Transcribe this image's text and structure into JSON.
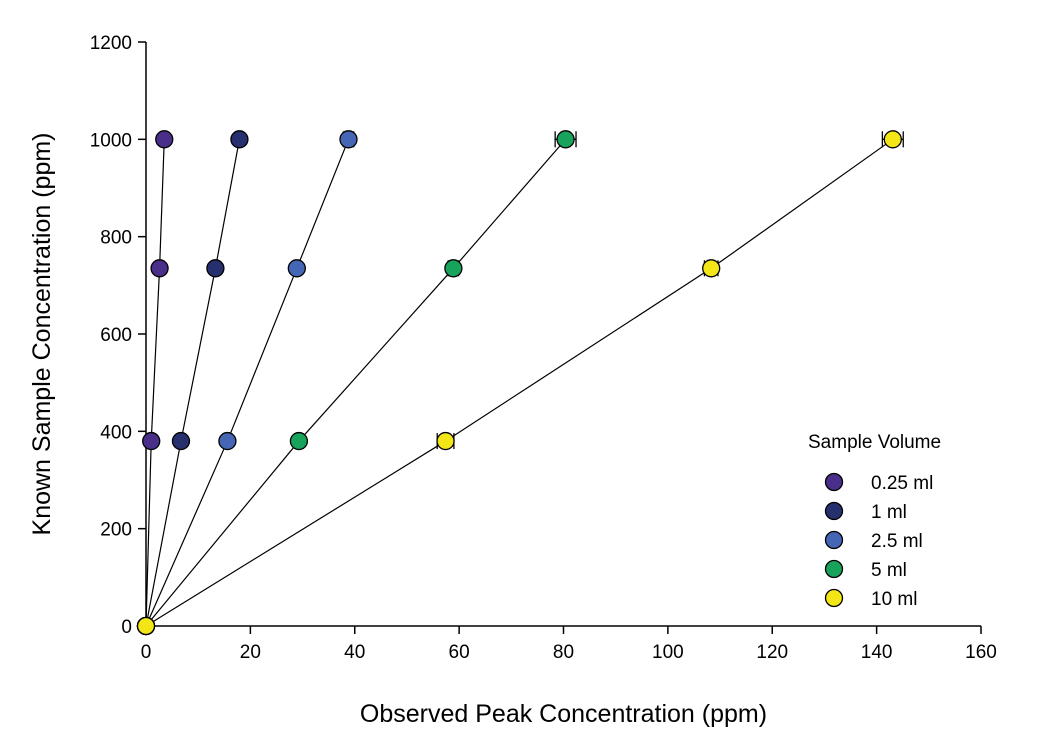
{
  "chart_data": {
    "type": "scatter",
    "xlabel": "Observed Peak Concentration (ppm)",
    "ylabel": "Known Sample Concentration (ppm)",
    "xlim": [
      0,
      160
    ],
    "ylim": [
      0,
      1200
    ],
    "x_ticks": [
      "0",
      "20",
      "40",
      "60",
      "80",
      "100",
      "120",
      "140",
      "160"
    ],
    "y_ticks": [
      "0",
      "200",
      "400",
      "600",
      "800",
      "1000",
      "1200"
    ],
    "grid": false,
    "legend": {
      "title": "Sample Volume",
      "position": "right"
    },
    "series": [
      {
        "name": "0.25 ml",
        "color": "#4a2f8a",
        "points": [
          {
            "x": 0,
            "y": 0
          },
          {
            "x": 1,
            "y": 380
          },
          {
            "x": 2.6,
            "y": 735
          },
          {
            "x": 3.5,
            "y": 1000
          }
        ],
        "xerr": [
          0,
          0,
          0,
          0
        ]
      },
      {
        "name": "1 ml",
        "color": "#27306f",
        "points": [
          {
            "x": 0,
            "y": 0
          },
          {
            "x": 6.7,
            "y": 380
          },
          {
            "x": 13.3,
            "y": 735
          },
          {
            "x": 17.9,
            "y": 1000
          }
        ],
        "xerr": [
          0,
          0,
          0,
          0.4
        ]
      },
      {
        "name": "2.5 ml",
        "color": "#4466b4",
        "points": [
          {
            "x": 0,
            "y": 0
          },
          {
            "x": 15.6,
            "y": 380
          },
          {
            "x": 28.9,
            "y": 735
          },
          {
            "x": 38.8,
            "y": 1000
          }
        ],
        "xerr": [
          0,
          0,
          0,
          1.0
        ]
      },
      {
        "name": "5 ml",
        "color": "#18a35c",
        "points": [
          {
            "x": 0,
            "y": 0
          },
          {
            "x": 29.3,
            "y": 380
          },
          {
            "x": 58.9,
            "y": 735
          },
          {
            "x": 80.4,
            "y": 1000
          }
        ],
        "xerr": [
          0,
          0.8,
          1.0,
          2.0
        ]
      },
      {
        "name": "10 ml",
        "color": "#f2e616",
        "points": [
          {
            "x": 0,
            "y": 0
          },
          {
            "x": 57.4,
            "y": 380
          },
          {
            "x": 108.3,
            "y": 735
          },
          {
            "x": 143.1,
            "y": 1000
          }
        ],
        "xerr": [
          0,
          1.6,
          1.3,
          2.0
        ]
      }
    ]
  }
}
